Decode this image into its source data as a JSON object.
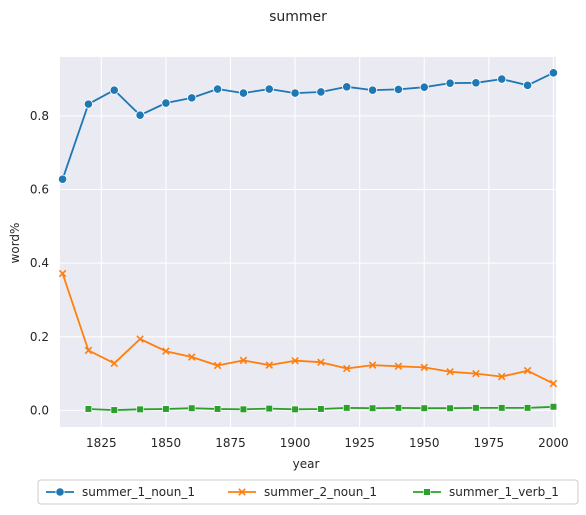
{
  "chart_data": {
    "type": "line",
    "title": "summer",
    "xlabel": "year",
    "ylabel": "word%",
    "xlim": [
      1809,
      2001
    ],
    "ylim": [
      -0.045,
      0.96
    ],
    "xticks": [
      1825,
      1850,
      1875,
      1900,
      1925,
      1950,
      1975,
      2000
    ],
    "yticks": [
      0.0,
      0.2,
      0.4,
      0.6,
      0.8
    ],
    "ytick_labels": [
      "0.0",
      "0.2",
      "0.4",
      "0.6",
      "0.8"
    ],
    "grid": true,
    "legend_position": "bottom",
    "x": [
      1810,
      1820,
      1830,
      1840,
      1850,
      1860,
      1870,
      1880,
      1890,
      1900,
      1910,
      1920,
      1930,
      1940,
      1950,
      1960,
      1970,
      1980,
      1990,
      2000
    ],
    "series": [
      {
        "name": "summer_1_noun_1",
        "color": "#1f77b4",
        "marker": "circle",
        "values": [
          0.628,
          0.832,
          0.87,
          0.802,
          0.835,
          0.849,
          0.873,
          0.862,
          0.873,
          0.862,
          0.865,
          0.879,
          0.87,
          0.872,
          0.878,
          0.889,
          0.89,
          0.9,
          0.883,
          0.917
        ]
      },
      {
        "name": "summer_2_noun_1",
        "color": "#ff7f0e",
        "marker": "x",
        "values": [
          0.372,
          0.163,
          0.128,
          0.194,
          0.161,
          0.145,
          0.122,
          0.136,
          0.123,
          0.135,
          0.131,
          0.114,
          0.123,
          0.12,
          0.117,
          0.105,
          0.1,
          0.092,
          0.108,
          0.073
        ]
      },
      {
        "name": "summer_1_verb_1",
        "color": "#2ca02c",
        "marker": "square",
        "values": [
          null,
          0.004,
          0.001,
          0.003,
          0.004,
          0.006,
          0.004,
          0.003,
          0.005,
          0.003,
          0.004,
          0.007,
          0.006,
          0.007,
          0.006,
          0.006,
          0.007,
          0.007,
          0.007,
          0.01
        ]
      }
    ]
  }
}
